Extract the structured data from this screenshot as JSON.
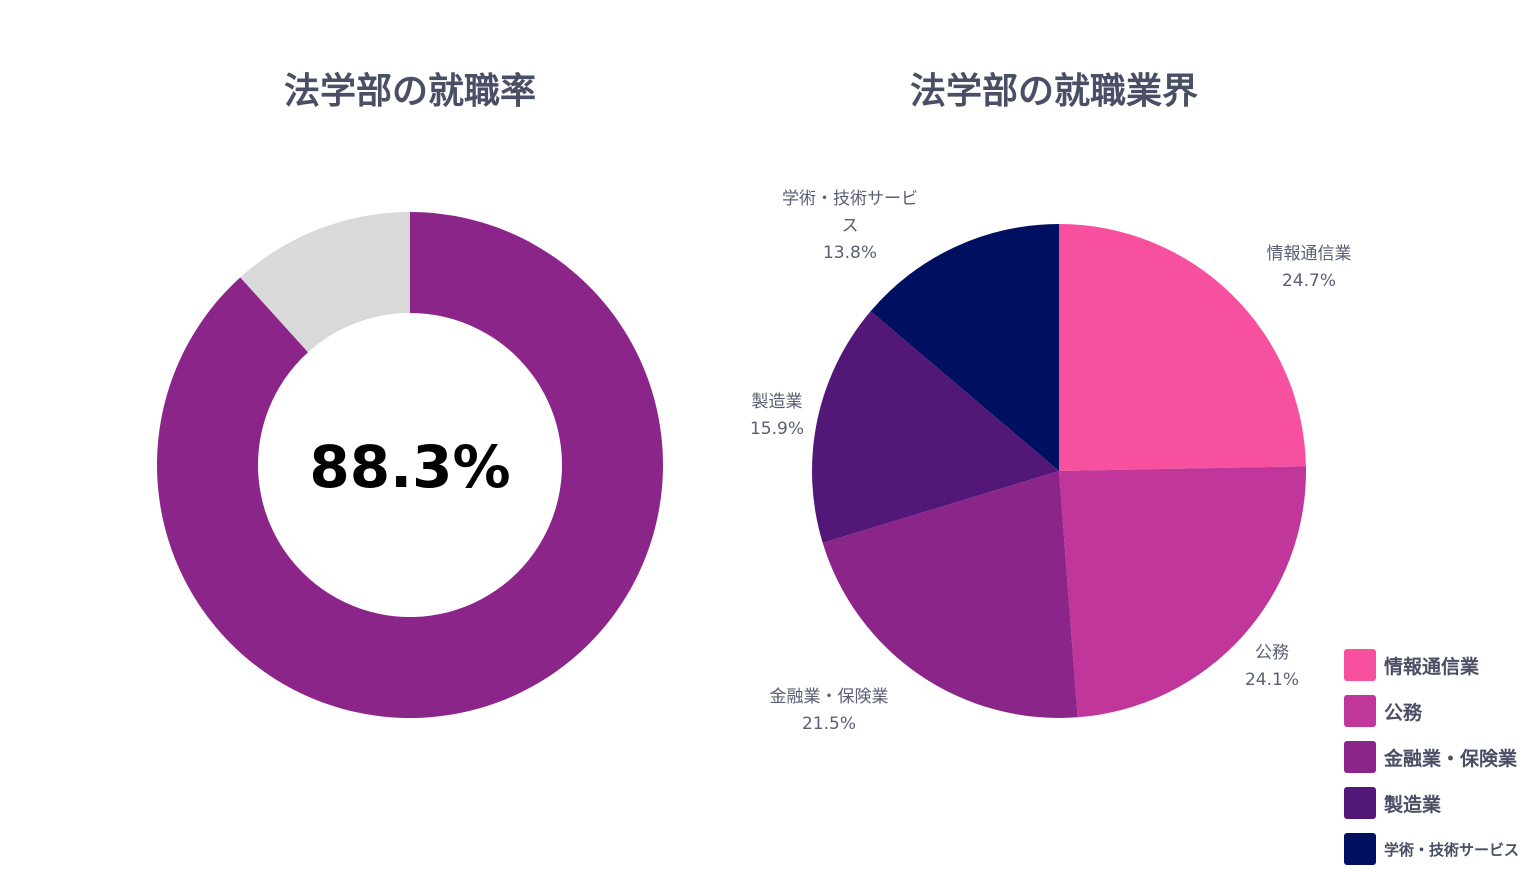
{
  "chart_data": [
    {
      "type": "pie",
      "variant": "donut",
      "title": "法学部の就職率",
      "center_label": "88.3%",
      "values": [
        88.3,
        11.7
      ],
      "colors": [
        "#8B258A",
        "#D9D9D9"
      ]
    },
    {
      "type": "pie",
      "title": "法学部の就職業界",
      "categories": [
        "情報通信業",
        "公務",
        "金融業・保険業",
        "製造業",
        "学術・技術サービス"
      ],
      "values": [
        24.7,
        24.1,
        21.5,
        15.9,
        13.8
      ],
      "data_labels": [
        "24.7%",
        "24.1%",
        "21.5%",
        "15.9%",
        "13.8%"
      ],
      "colors": [
        "#F7509F",
        "#C0369A",
        "#8B258A",
        "#531877",
        "#001060"
      ],
      "legend": "bottom-right"
    }
  ]
}
